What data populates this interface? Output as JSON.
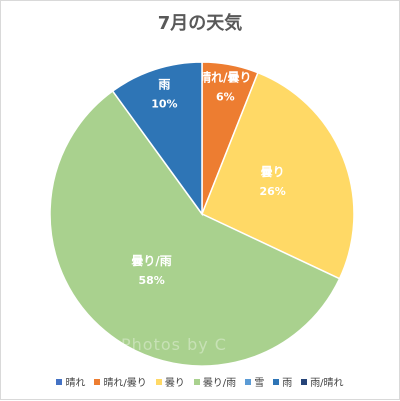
{
  "chart_data": {
    "type": "pie",
    "title": "7月の天気",
    "slices": [
      {
        "name": "晴れ",
        "value": 0,
        "label": "",
        "color": "#4472c4"
      },
      {
        "name": "晴れ/曇り",
        "value": 6,
        "label": "6%",
        "color": "#ed7d31"
      },
      {
        "name": "曇り",
        "value": 26,
        "label": "26%",
        "color": "#ffd966"
      },
      {
        "name": "曇り/雨",
        "value": 58,
        "label": "58%",
        "color": "#a9d18e"
      },
      {
        "name": "雪",
        "value": 0,
        "label": "",
        "color": "#5b9bd5"
      },
      {
        "name": "雨",
        "value": 10,
        "label": "10%",
        "color": "#2e75b6"
      },
      {
        "name": "雨/晴れ",
        "value": 0,
        "label": "",
        "color": "#264478"
      }
    ],
    "legend_position": "bottom",
    "start_angle": "12 o'clock",
    "direction": "clockwise"
  },
  "watermark": "Photos by C"
}
